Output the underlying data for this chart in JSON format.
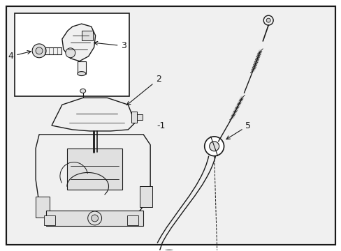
{
  "bg_color": "#ffffff",
  "line_color": "#1a1a1a",
  "gray1": "#f0f0f0",
  "gray2": "#e0e0e0",
  "gray3": "#d0d0d0"
}
